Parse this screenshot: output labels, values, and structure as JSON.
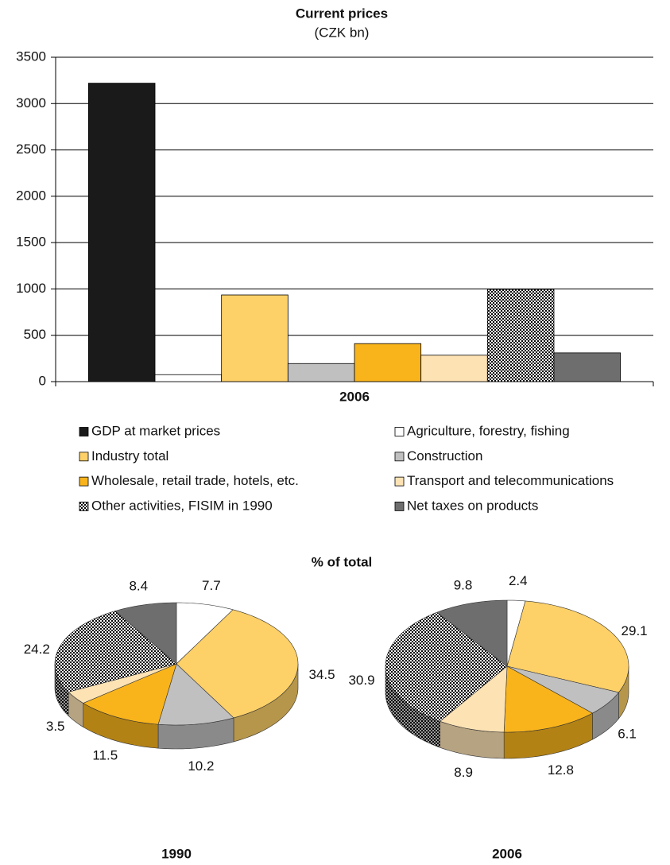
{
  "chart_data": [
    {
      "type": "bar",
      "title": "Current prices",
      "subtitle": "(CZK bn)",
      "categories": [
        "2006"
      ],
      "series": [
        {
          "name": "GDP at market prices",
          "color": "#1a1a1a",
          "values": [
            3220
          ]
        },
        {
          "name": "Agriculture, forestry, fishing",
          "color": "#ffffff",
          "values": [
            75
          ]
        },
        {
          "name": "Industry total",
          "color": "#fdd068",
          "values": [
            935
          ]
        },
        {
          "name": "Construction",
          "color": "#c0c0c0",
          "values": [
            195
          ]
        },
        {
          "name": "Wholesale, retail trade, hotels, etc.",
          "color": "#f9b41c",
          "values": [
            410
          ]
        },
        {
          "name": "Transport and telecommunications",
          "color": "#fde2b4",
          "values": [
            285
          ]
        },
        {
          "name": "Other activities, FISIM in 1990",
          "color": "#000000",
          "pattern": "checker",
          "values": [
            995
          ]
        },
        {
          "name": "Net taxes on products",
          "color": "#6e6e6e",
          "values": [
            310
          ]
        }
      ],
      "ylim": [
        0,
        3500
      ],
      "yticks": [
        0,
        500,
        1000,
        1500,
        2000,
        2500,
        3000,
        3500
      ],
      "grid": true
    },
    {
      "type": "pie",
      "title": "% of total",
      "charts": [
        {
          "label": "1990",
          "values": [
            7.7,
            34.5,
            10.2,
            11.5,
            3.5,
            24.2,
            8.4
          ]
        },
        {
          "label": "2006",
          "values": [
            2.4,
            29.1,
            6.1,
            12.8,
            8.9,
            30.9,
            9.8
          ]
        }
      ]
    }
  ]
}
